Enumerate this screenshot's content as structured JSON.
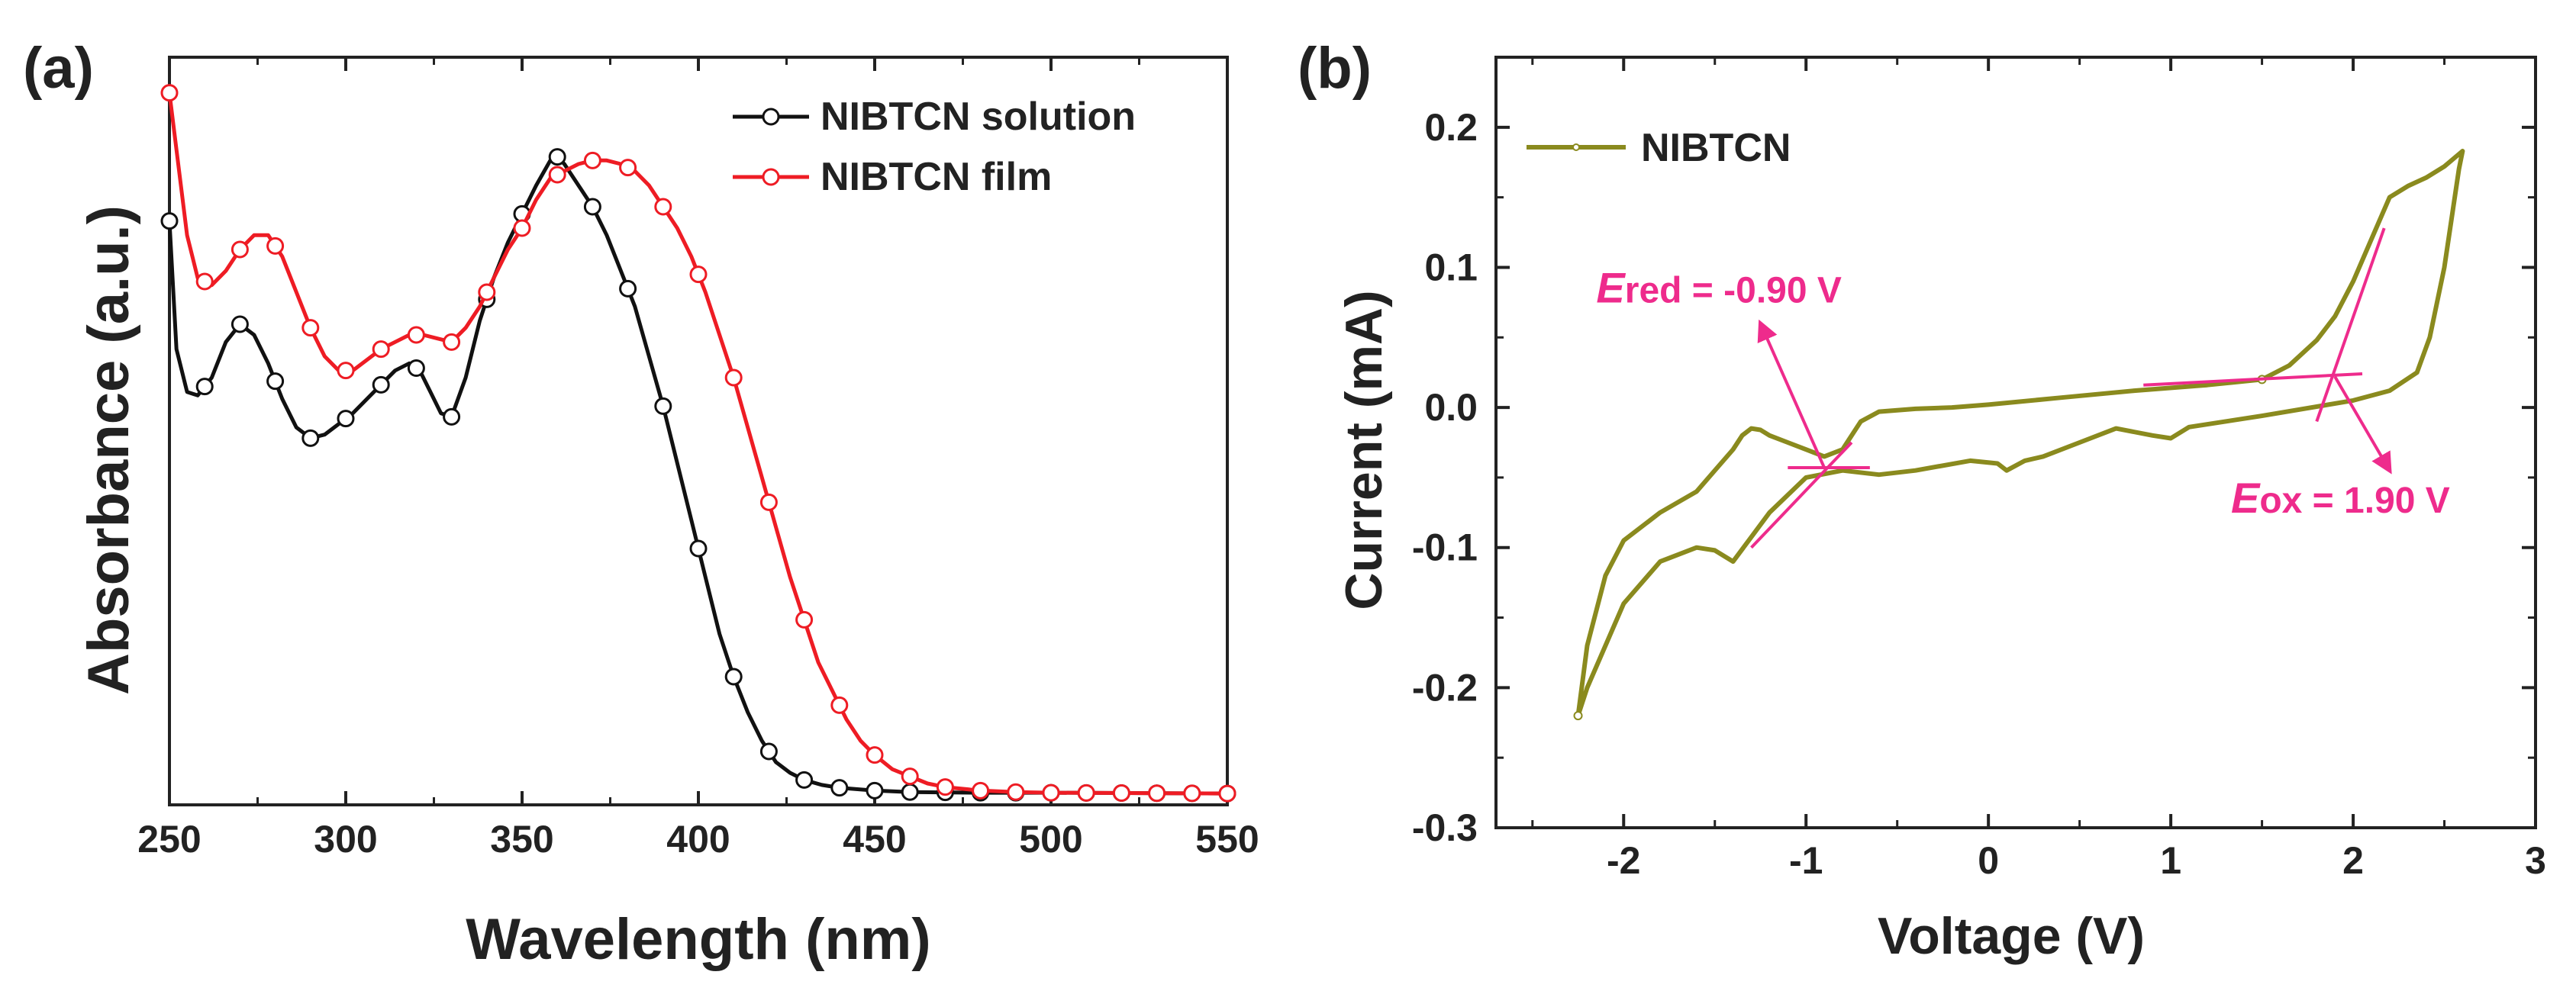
{
  "colors": {
    "solution": "#111111",
    "film": "#ee1c24",
    "cv": "#8a8a1e",
    "annotation": "#ee2b8c",
    "axis": "#222222"
  },
  "chart_data": [
    {
      "panel": "(a)",
      "type": "line",
      "xlabel": "Wavelength (nm)",
      "ylabel": "Absorbance (a.u.)",
      "xlim": [
        250,
        550
      ],
      "ylim": [
        0,
        1.05
      ],
      "xticks": [
        250,
        300,
        350,
        400,
        450,
        500,
        550
      ],
      "yticks_shown": false,
      "legend_position": "top-right",
      "series": [
        {
          "name": "NIBTCN solution",
          "color_key": "solution",
          "points": [
            [
              250,
              0.82
            ],
            [
              252,
              0.64
            ],
            [
              255,
              0.58
            ],
            [
              258,
              0.575
            ],
            [
              262,
              0.6
            ],
            [
              266,
              0.65
            ],
            [
              270,
              0.675
            ],
            [
              274,
              0.66
            ],
            [
              278,
              0.62
            ],
            [
              282,
              0.57
            ],
            [
              286,
              0.53
            ],
            [
              290,
              0.515
            ],
            [
              294,
              0.52
            ],
            [
              298,
              0.535
            ],
            [
              302,
              0.55
            ],
            [
              306,
              0.57
            ],
            [
              310,
              0.59
            ],
            [
              314,
              0.61
            ],
            [
              318,
              0.62
            ],
            [
              321,
              0.61
            ],
            [
              324,
              0.58
            ],
            [
              327,
              0.55
            ],
            [
              330,
              0.545
            ],
            [
              334,
              0.6
            ],
            [
              338,
              0.68
            ],
            [
              342,
              0.74
            ],
            [
              346,
              0.79
            ],
            [
              350,
              0.83
            ],
            [
              354,
              0.87
            ],
            [
              358,
              0.905
            ],
            [
              360,
              0.91
            ],
            [
              362,
              0.9
            ],
            [
              366,
              0.87
            ],
            [
              370,
              0.84
            ],
            [
              374,
              0.8
            ],
            [
              378,
              0.75
            ],
            [
              382,
              0.7
            ],
            [
              386,
              0.63
            ],
            [
              390,
              0.56
            ],
            [
              394,
              0.48
            ],
            [
              398,
              0.4
            ],
            [
              402,
              0.32
            ],
            [
              406,
              0.24
            ],
            [
              410,
              0.18
            ],
            [
              414,
              0.13
            ],
            [
              418,
              0.09
            ],
            [
              422,
              0.06
            ],
            [
              426,
              0.045
            ],
            [
              430,
              0.035
            ],
            [
              435,
              0.028
            ],
            [
              440,
              0.024
            ],
            [
              450,
              0.02
            ],
            [
              460,
              0.018
            ],
            [
              480,
              0.017
            ],
            [
              500,
              0.017
            ],
            [
              550,
              0.016
            ]
          ],
          "markers_x": [
            250,
            260,
            270,
            280,
            290,
            300,
            310,
            320,
            330,
            340,
            350,
            360,
            370,
            380,
            390,
            400,
            410,
            420,
            430,
            440,
            450,
            460,
            470,
            480,
            490,
            500,
            510,
            520,
            530,
            540,
            550
          ]
        },
        {
          "name": "NIBTCN film",
          "color_key": "film",
          "points": [
            [
              250,
              1.0
            ],
            [
              252,
              0.92
            ],
            [
              255,
              0.8
            ],
            [
              258,
              0.74
            ],
            [
              262,
              0.73
            ],
            [
              266,
              0.75
            ],
            [
              270,
              0.78
            ],
            [
              274,
              0.8
            ],
            [
              278,
              0.8
            ],
            [
              282,
              0.77
            ],
            [
              286,
              0.72
            ],
            [
              290,
              0.67
            ],
            [
              294,
              0.63
            ],
            [
              298,
              0.61
            ],
            [
              302,
              0.61
            ],
            [
              306,
              0.625
            ],
            [
              310,
              0.64
            ],
            [
              314,
              0.65
            ],
            [
              318,
              0.66
            ],
            [
              322,
              0.66
            ],
            [
              326,
              0.655
            ],
            [
              330,
              0.65
            ],
            [
              334,
              0.67
            ],
            [
              338,
              0.7
            ],
            [
              342,
              0.74
            ],
            [
              346,
              0.78
            ],
            [
              350,
              0.81
            ],
            [
              354,
              0.85
            ],
            [
              358,
              0.88
            ],
            [
              362,
              0.89
            ],
            [
              366,
              0.9
            ],
            [
              370,
              0.905
            ],
            [
              374,
              0.905
            ],
            [
              378,
              0.9
            ],
            [
              382,
              0.89
            ],
            [
              386,
              0.87
            ],
            [
              390,
              0.84
            ],
            [
              394,
              0.81
            ],
            [
              398,
              0.77
            ],
            [
              402,
              0.72
            ],
            [
              406,
              0.66
            ],
            [
              410,
              0.6
            ],
            [
              414,
              0.53
            ],
            [
              418,
              0.46
            ],
            [
              422,
              0.39
            ],
            [
              426,
              0.32
            ],
            [
              430,
              0.26
            ],
            [
              434,
              0.2
            ],
            [
              438,
              0.16
            ],
            [
              442,
              0.12
            ],
            [
              446,
              0.09
            ],
            [
              450,
              0.07
            ],
            [
              455,
              0.05
            ],
            [
              460,
              0.04
            ],
            [
              465,
              0.03
            ],
            [
              470,
              0.025
            ],
            [
              480,
              0.02
            ],
            [
              490,
              0.018
            ],
            [
              500,
              0.017
            ],
            [
              550,
              0.016
            ]
          ],
          "markers_x": [
            250,
            260,
            270,
            280,
            290,
            300,
            310,
            320,
            330,
            340,
            350,
            360,
            370,
            380,
            390,
            400,
            410,
            420,
            430,
            440,
            450,
            460,
            470,
            480,
            490,
            500,
            510,
            520,
            530,
            540,
            550
          ]
        }
      ]
    },
    {
      "panel": "(b)",
      "type": "line",
      "xlabel": "Voltage (V)",
      "ylabel": "Current (mA)",
      "xlim": [
        -2.7,
        3.0
      ],
      "ylim": [
        -0.3,
        0.25
      ],
      "xticks": [
        -2,
        -1,
        0,
        1,
        2,
        3
      ],
      "yticks": [
        -0.3,
        -0.2,
        -0.1,
        0.0,
        0.1,
        0.2
      ],
      "ytick_labels": [
        "-0.3",
        "-0.2",
        "-0.1",
        "0.0",
        "0.1",
        "0.2"
      ],
      "legend_position": "top-left",
      "series": [
        {
          "name": "NIBTCN",
          "color_key": "cv",
          "points": [
            [
              -2.25,
              -0.22
            ],
            [
              -2.2,
              -0.17
            ],
            [
              -2.1,
              -0.12
            ],
            [
              -2.0,
              -0.095
            ],
            [
              -1.8,
              -0.075
            ],
            [
              -1.6,
              -0.06
            ],
            [
              -1.5,
              -0.045
            ],
            [
              -1.4,
              -0.03
            ],
            [
              -1.35,
              -0.02
            ],
            [
              -1.3,
              -0.015
            ],
            [
              -1.25,
              -0.016
            ],
            [
              -1.2,
              -0.02
            ],
            [
              -1.1,
              -0.025
            ],
            [
              -1.0,
              -0.03
            ],
            [
              -0.9,
              -0.035
            ],
            [
              -0.8,
              -0.03
            ],
            [
              -0.7,
              -0.01
            ],
            [
              -0.6,
              -0.003
            ],
            [
              -0.4,
              -0.001
            ],
            [
              -0.2,
              0.0
            ],
            [
              0.0,
              0.002
            ],
            [
              0.4,
              0.007
            ],
            [
              0.8,
              0.012
            ],
            [
              1.2,
              0.016
            ],
            [
              1.5,
              0.02
            ],
            [
              1.65,
              0.03
            ],
            [
              1.8,
              0.048
            ],
            [
              1.9,
              0.065
            ],
            [
              2.0,
              0.09
            ],
            [
              2.1,
              0.12
            ],
            [
              2.2,
              0.15
            ],
            [
              2.3,
              0.158
            ],
            [
              2.4,
              0.164
            ],
            [
              2.5,
              0.172
            ],
            [
              2.6,
              0.183
            ],
            [
              2.58,
              0.17
            ],
            [
              2.5,
              0.1
            ],
            [
              2.42,
              0.05
            ],
            [
              2.35,
              0.025
            ],
            [
              2.2,
              0.012
            ],
            [
              2.0,
              0.005
            ],
            [
              1.5,
              -0.006
            ],
            [
              1.1,
              -0.014
            ],
            [
              1.0,
              -0.022
            ],
            [
              0.9,
              -0.02
            ],
            [
              0.7,
              -0.015
            ],
            [
              0.5,
              -0.025
            ],
            [
              0.3,
              -0.035
            ],
            [
              0.2,
              -0.038
            ],
            [
              0.1,
              -0.045
            ],
            [
              0.05,
              -0.04
            ],
            [
              -0.1,
              -0.038
            ],
            [
              -0.4,
              -0.045
            ],
            [
              -0.6,
              -0.048
            ],
            [
              -0.8,
              -0.045
            ],
            [
              -1.0,
              -0.05
            ],
            [
              -1.2,
              -0.075
            ],
            [
              -1.4,
              -0.11
            ],
            [
              -1.5,
              -0.102
            ],
            [
              -1.6,
              -0.1
            ],
            [
              -1.8,
              -0.11
            ],
            [
              -2.0,
              -0.14
            ],
            [
              -2.2,
              -0.2
            ],
            [
              -2.25,
              -0.22
            ]
          ]
        }
      ],
      "annotations": [
        {
          "name": "E-red",
          "italic": "E",
          "rest": "red = -0.90 V",
          "point": [
            -0.9,
            -0.043
          ],
          "arrow_to": [
            -1.25,
            0.06
          ],
          "text_at": [
            -2.15,
            0.075
          ],
          "baseline": [
            [
              -1.1,
              -0.043
            ],
            [
              -0.65,
              -0.043
            ]
          ],
          "tangent": [
            [
              -1.3,
              -0.1
            ],
            [
              -0.75,
              -0.025
            ]
          ]
        },
        {
          "name": "E-ox",
          "italic": "E",
          "rest": "ox = 1.90 V",
          "point": [
            1.9,
            0.022
          ],
          "arrow_to": [
            2.2,
            -0.045
          ],
          "text_at": [
            1.33,
            -0.075
          ],
          "baseline": [
            [
              0.85,
              0.016
            ],
            [
              2.05,
              0.024
            ]
          ],
          "tangent": [
            [
              1.8,
              -0.01
            ],
            [
              2.17,
              0.128
            ]
          ]
        }
      ]
    }
  ]
}
